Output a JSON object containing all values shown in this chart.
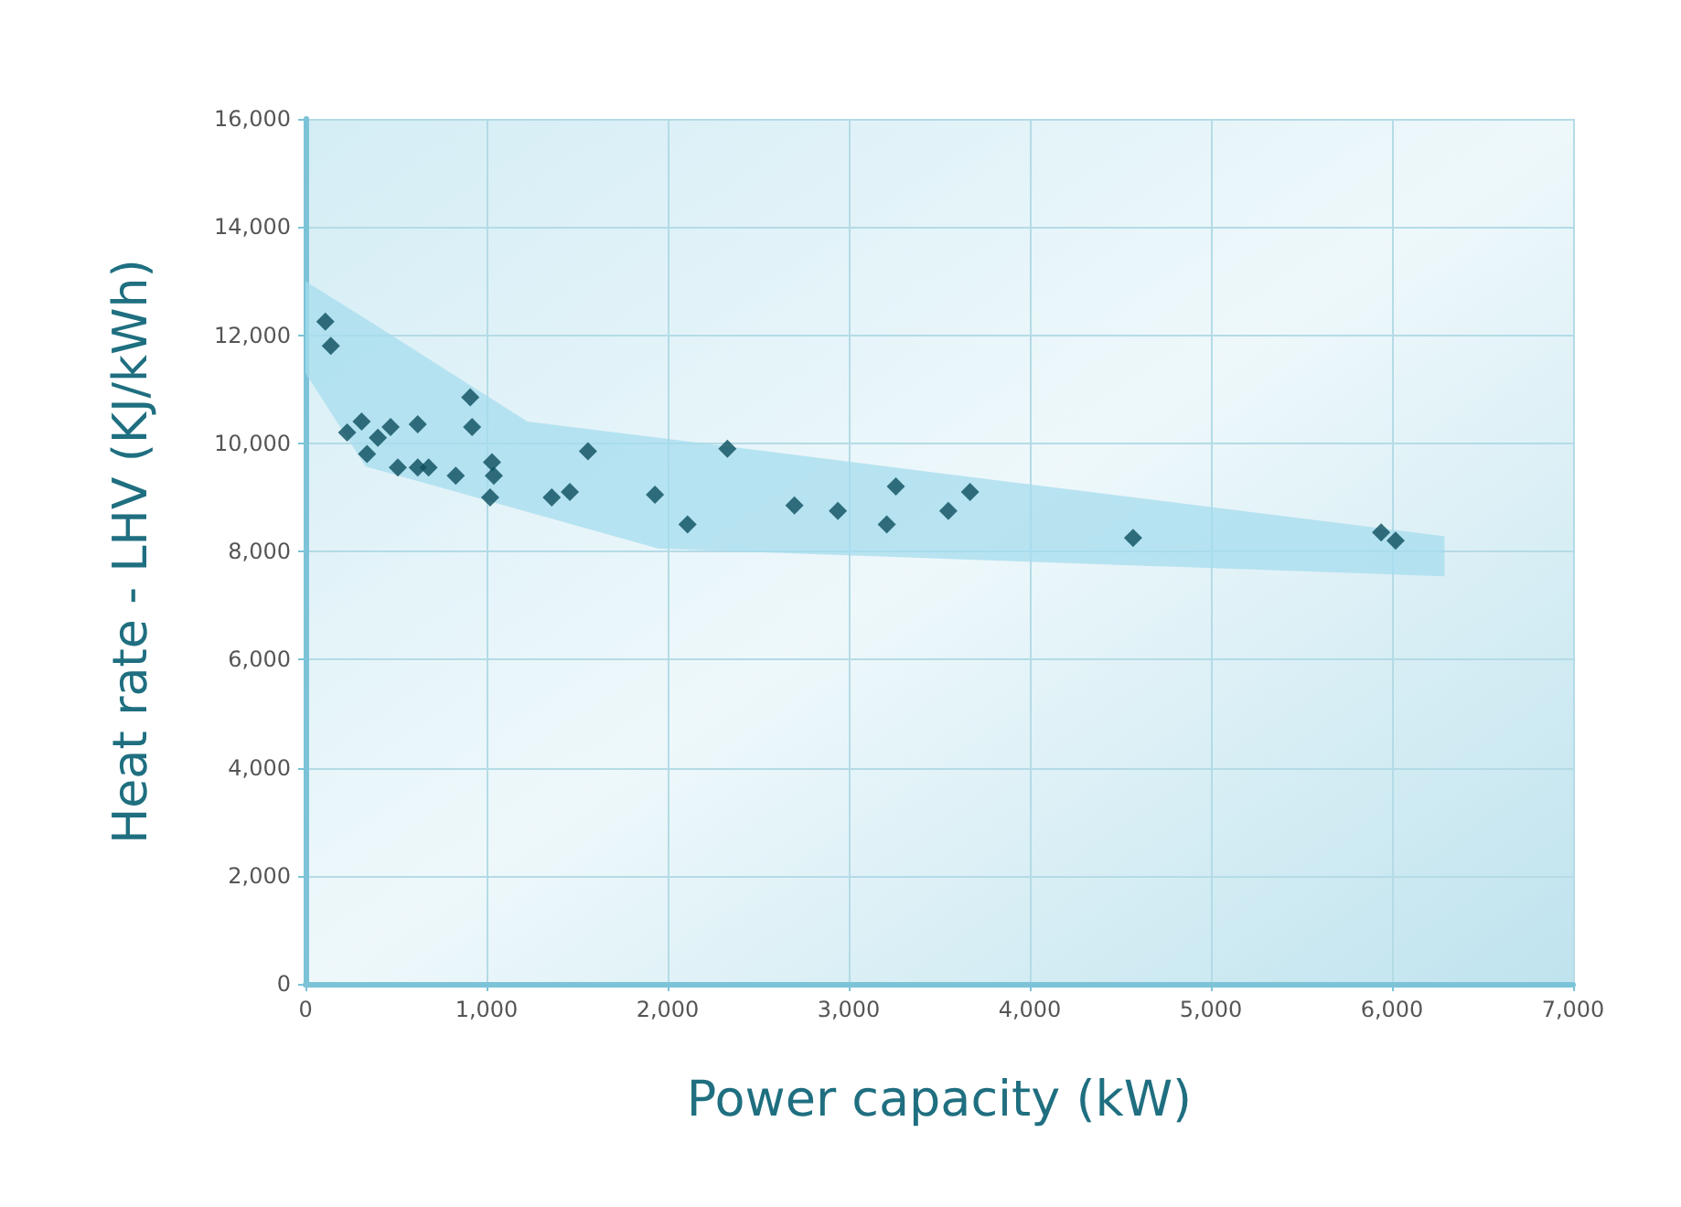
{
  "chart_data": {
    "type": "scatter",
    "xlabel": "Power capacity (kW)",
    "ylabel": "Heat rate - LHV (KJ/kWh)",
    "xlim": [
      0,
      7000
    ],
    "xticks": [
      0,
      {
        "value": 1000,
        "label": "1,000"
      },
      {
        "value": 2000,
        "label": "2,000"
      },
      {
        "value": 3000,
        "label": "3,000"
      },
      {
        "value": 4000,
        "label": "4,000"
      },
      {
        "value": 5000,
        "label": "5,000"
      },
      {
        "value": 6000,
        "label": "6,000"
      },
      {
        "value": 7000,
        "label": "7,000"
      }
    ],
    "ylim": [
      0,
      16000
    ],
    "yticks": [
      0,
      {
        "value": 2000,
        "label": "2,000"
      },
      {
        "value": 4000,
        "label": "4,000"
      },
      {
        "value": 6000,
        "label": "6,000"
      },
      {
        "value": 8000,
        "label": "8,000"
      },
      {
        "value": 10000,
        "label": "10,000"
      },
      {
        "value": 12000,
        "label": "12,000"
      },
      {
        "value": 14000,
        "label": "14,000"
      },
      {
        "value": 16000,
        "label": "16,000"
      }
    ],
    "grid": true,
    "marker": "diamond",
    "series": [
      {
        "type": "area",
        "color": "#a6dcee",
        "x": [
          0,
          333,
          1225,
          1950,
          6290
        ],
        "values": [
          null,
          null,
          null,
          null,
          null
        ],
        "lower": [
          11300,
          9570,
          8730,
          8050,
          7540
        ],
        "upper": [
          13000,
          12300,
          10400,
          10100,
          8280
        ]
      },
      {
        "color": "#0b4d5e",
        "x": [
          110,
          140,
          230,
          310,
          340,
          400,
          470,
          510,
          620,
          620,
          680,
          830,
          910,
          920,
          1030,
          1040,
          1020,
          1360,
          1460,
          1560,
          1930,
          2110,
          2330,
          2700,
          2940,
          3210,
          3260,
          3550,
          3670,
          4570,
          5940,
          6020
        ],
        "values": [
          12250,
          11800,
          10200,
          10400,
          9800,
          10100,
          10300,
          9550,
          10350,
          9550,
          9550,
          9400,
          10850,
          10300,
          9650,
          9400,
          9000,
          9000,
          9100,
          9850,
          9050,
          8500,
          9900,
          8850,
          8750,
          8500,
          9200,
          8750,
          9100,
          8250,
          8350,
          8200
        ]
      }
    ]
  }
}
